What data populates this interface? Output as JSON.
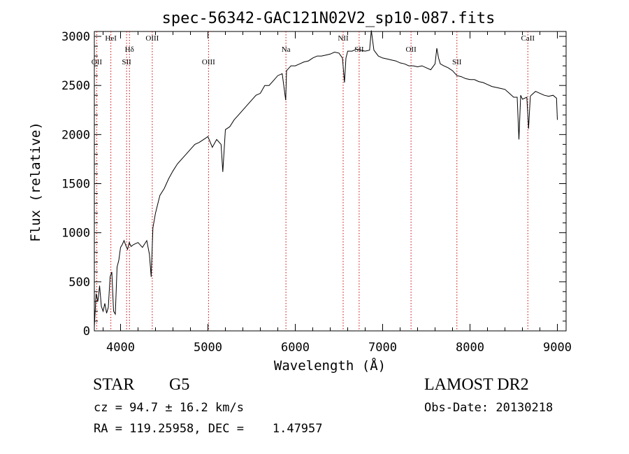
{
  "chart_data": {
    "type": "line",
    "title": "spec-56342-GAC121N02V2_sp10-087.fits",
    "xlabel": "Wavelength (Å)",
    "ylabel": "Flux (relative)",
    "xlim": [
      3700,
      9100
    ],
    "ylim": [
      0,
      3050
    ],
    "x_ticks": [
      4000,
      5000,
      6000,
      7000,
      8000,
      9000
    ],
    "y_ticks": [
      0,
      500,
      1000,
      1500,
      2000,
      2500,
      3000
    ],
    "grid": false,
    "line_color": "#000000",
    "marker_color": "#cc0000",
    "series": [
      {
        "x": [
          3700,
          3720,
          3740,
          3760,
          3780,
          3800,
          3820,
          3840,
          3860,
          3880,
          3900,
          3920,
          3940,
          3960,
          3980,
          4000,
          4020,
          4040,
          4060,
          4080,
          4100,
          4120,
          4150,
          4200,
          4250,
          4300,
          4330,
          4350,
          4370,
          4400,
          4450,
          4500,
          4550,
          4600,
          4650,
          4700,
          4750,
          4800,
          4850,
          4900,
          4950,
          5000,
          5050,
          5100,
          5150,
          5170,
          5200,
          5250,
          5300,
          5350,
          5400,
          5450,
          5500,
          5550,
          5600,
          5650,
          5700,
          5750,
          5800,
          5850,
          5890,
          5900,
          5950,
          6000,
          6050,
          6100,
          6150,
          6200,
          6250,
          6300,
          6350,
          6400,
          6450,
          6500,
          6540,
          6563,
          6580,
          6600,
          6650,
          6700,
          6750,
          6800,
          6850,
          6870,
          6900,
          6950,
          7000,
          7050,
          7100,
          7150,
          7200,
          7250,
          7300,
          7350,
          7400,
          7450,
          7500,
          7550,
          7600,
          7620,
          7640,
          7660,
          7700,
          7750,
          7800,
          7850,
          7900,
          7950,
          8000,
          8050,
          8100,
          8150,
          8200,
          8250,
          8300,
          8350,
          8400,
          8450,
          8500,
          8540,
          8560,
          8580,
          8600,
          8650,
          8670,
          8690,
          8700,
          8750,
          8800,
          8850,
          8900,
          8950,
          8990,
          9000
        ],
        "values": [
          40,
          380,
          300,
          460,
          250,
          200,
          280,
          180,
          240,
          550,
          600,
          200,
          170,
          650,
          720,
          850,
          880,
          920,
          870,
          830,
          900,
          860,
          880,
          900,
          850,
          920,
          780,
          550,
          1050,
          1200,
          1380,
          1450,
          1550,
          1630,
          1700,
          1750,
          1800,
          1850,
          1900,
          1920,
          1950,
          1980,
          1870,
          1950,
          1900,
          1620,
          2050,
          2080,
          2150,
          2200,
          2250,
          2300,
          2350,
          2400,
          2420,
          2500,
          2500,
          2550,
          2600,
          2620,
          2350,
          2650,
          2700,
          2700,
          2720,
          2740,
          2750,
          2780,
          2800,
          2800,
          2810,
          2820,
          2840,
          2830,
          2780,
          2530,
          2780,
          2850,
          2850,
          2870,
          2860,
          2850,
          2860,
          3060,
          2860,
          2800,
          2780,
          2770,
          2760,
          2750,
          2730,
          2720,
          2700,
          2700,
          2690,
          2700,
          2680,
          2660,
          2720,
          2880,
          2780,
          2720,
          2700,
          2680,
          2650,
          2600,
          2590,
          2570,
          2560,
          2560,
          2540,
          2530,
          2510,
          2490,
          2480,
          2470,
          2460,
          2420,
          2380,
          2380,
          1950,
          2400,
          2360,
          2380,
          2060,
          2390,
          2400,
          2440,
          2420,
          2400,
          2390,
          2400,
          2370,
          2150
        ]
      }
    ],
    "lines": [
      {
        "label": "OII",
        "x": 3727
      },
      {
        "label": "HeI",
        "x": 3889
      },
      {
        "label": "Hδ",
        "x": 4102
      },
      {
        "label": "SII",
        "x": 4069
      },
      {
        "label": "OIII",
        "x": 4363
      },
      {
        "label": "OIII",
        "x": 5007
      },
      {
        "label": "Na",
        "x": 5893
      },
      {
        "label": "NII",
        "x": 6548
      },
      {
        "label": "SII",
        "x": 6731
      },
      {
        "label": "OII",
        "x": 7325
      },
      {
        "label": "SII",
        "x": 7850
      },
      {
        "label": "CaII",
        "x": 8662
      }
    ]
  },
  "info": {
    "class_label": "STAR",
    "subclass": "G5",
    "survey": "LAMOST DR2",
    "redshift": "cz = 94.7 ± 16.2 km/s",
    "obs_date": "Obs-Date: 20130218",
    "coords": "RA = 119.25958, DEC =    1.47957"
  }
}
